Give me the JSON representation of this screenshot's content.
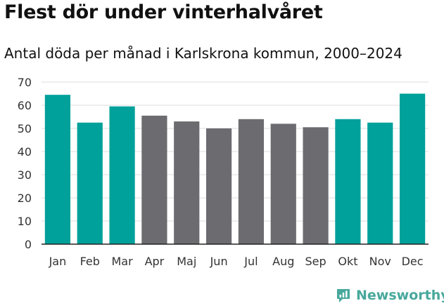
{
  "title": "Flest dör under vinterhalvåret",
  "subtitle": "Antal döda per månad i Karlskrona kommun, 2000–2024",
  "brand": "Newsworthy",
  "colors": {
    "winter": "#00a19a",
    "summer": "#6c6b70",
    "grid": "#dddddd",
    "axis": "#222222",
    "brand": "#48a89c"
  },
  "chart_data": {
    "type": "bar",
    "title": "Flest dör under vinterhalvåret",
    "subtitle": "Antal döda per månad i Karlskrona kommun, 2000–2024",
    "xlabel": "",
    "ylabel": "",
    "ylim": [
      0,
      70
    ],
    "yticks": [
      0,
      10,
      20,
      30,
      40,
      50,
      60,
      70
    ],
    "grid": true,
    "categories": [
      "Jan",
      "Feb",
      "Mar",
      "Apr",
      "Maj",
      "Jun",
      "Jul",
      "Aug",
      "Sep",
      "Okt",
      "Nov",
      "Dec"
    ],
    "values": [
      64.5,
      52.5,
      59.5,
      55.5,
      53.0,
      50.0,
      54.0,
      52.0,
      50.5,
      54.0,
      52.5,
      65.0
    ],
    "season": [
      "winter",
      "winter",
      "winter",
      "summer",
      "summer",
      "summer",
      "summer",
      "summer",
      "summer",
      "winter",
      "winter",
      "winter"
    ]
  }
}
